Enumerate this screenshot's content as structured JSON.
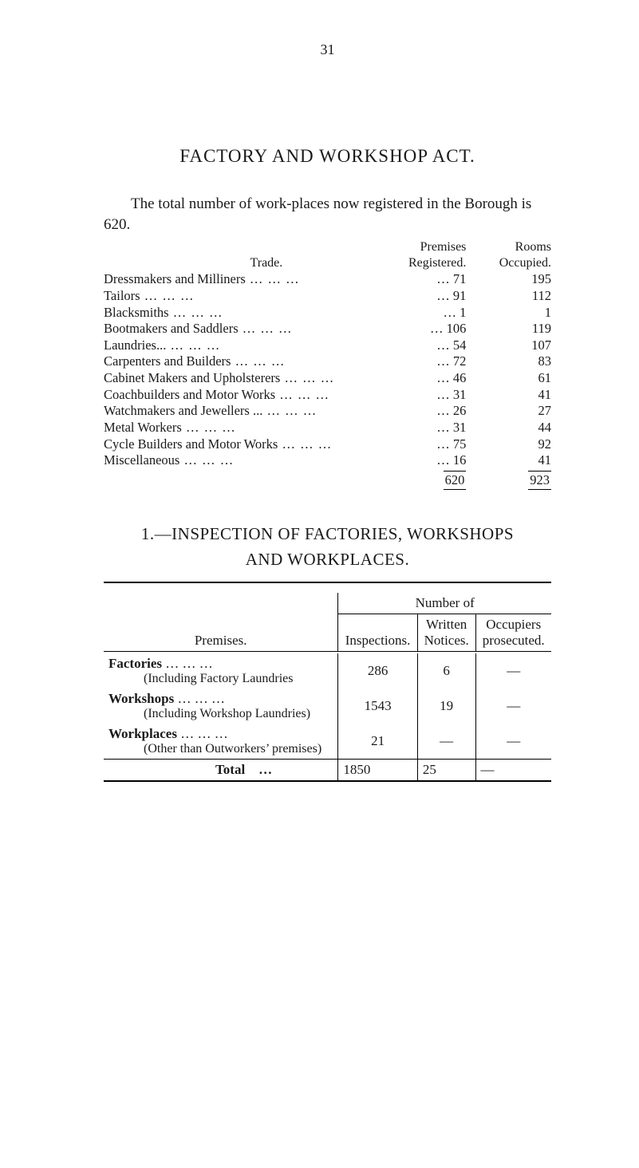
{
  "page_number": "31",
  "main_heading": "FACTORY  AND  WORKSHOP  ACT.",
  "intro_text": "The total number of work-places now registered in the Borough is 620.",
  "trade": {
    "col_trade": "Trade.",
    "col_premises": "Premises",
    "col_registered": "Registered.",
    "col_rooms": "Rooms",
    "col_occupied": "Occupied.",
    "rows": [
      {
        "label": "Dressmakers and Milliners",
        "p": "71",
        "r": "195"
      },
      {
        "label": "Tailors",
        "p": "91",
        "r": "112"
      },
      {
        "label": "Blacksmiths",
        "p": "1",
        "r": "1"
      },
      {
        "label": "Bootmakers and Saddlers",
        "p": "106",
        "r": "119"
      },
      {
        "label": "Laundries...",
        "p": "54",
        "r": "107"
      },
      {
        "label": "Carpenters and Builders",
        "p": "72",
        "r": "83"
      },
      {
        "label": "Cabinet Makers and Upholsterers",
        "p": "46",
        "r": "61"
      },
      {
        "label": "Coachbuilders and Motor Works",
        "p": "31",
        "r": "41"
      },
      {
        "label": "Watchmakers and Jewellers ...",
        "p": "26",
        "r": "27"
      },
      {
        "label": "Metal Workers",
        "p": "31",
        "r": "44"
      },
      {
        "label": "Cycle Builders and Motor Works",
        "p": "75",
        "r": "92"
      },
      {
        "label": "Miscellaneous",
        "p": "16",
        "r": "41"
      }
    ],
    "total_p": "620",
    "total_r": "923"
  },
  "section1": {
    "prefix": "1.—",
    "heading_line1": "INSPECTION OF FACTORIES, WORKSHOPS",
    "heading_line2": "AND WORKPLACES."
  },
  "wp": {
    "number_of": "Number of",
    "premises": "Premises.",
    "inspections": "Inspections.",
    "written_notices1": "Written",
    "written_notices2": "Notices.",
    "occupiers1": "Occupiers",
    "occupiers2": "prosecuted.",
    "rows": [
      {
        "label": "Factories",
        "sub": "(Including Factory Laundries",
        "ins": "286",
        "wn": "6",
        "occ": "—"
      },
      {
        "label": "Workshops",
        "sub": "(Including Workshop Laundries)",
        "ins": "1543",
        "wn": "19",
        "occ": "—"
      },
      {
        "label": "Workplaces",
        "sub": "(Other than Outworkers’ premises)",
        "ins": "21",
        "wn": "—",
        "occ": "—"
      }
    ],
    "total_label": "Total",
    "total_ins": "1850",
    "total_wn": "25",
    "total_occ": "—"
  },
  "dots": "…     …     …     …"
}
